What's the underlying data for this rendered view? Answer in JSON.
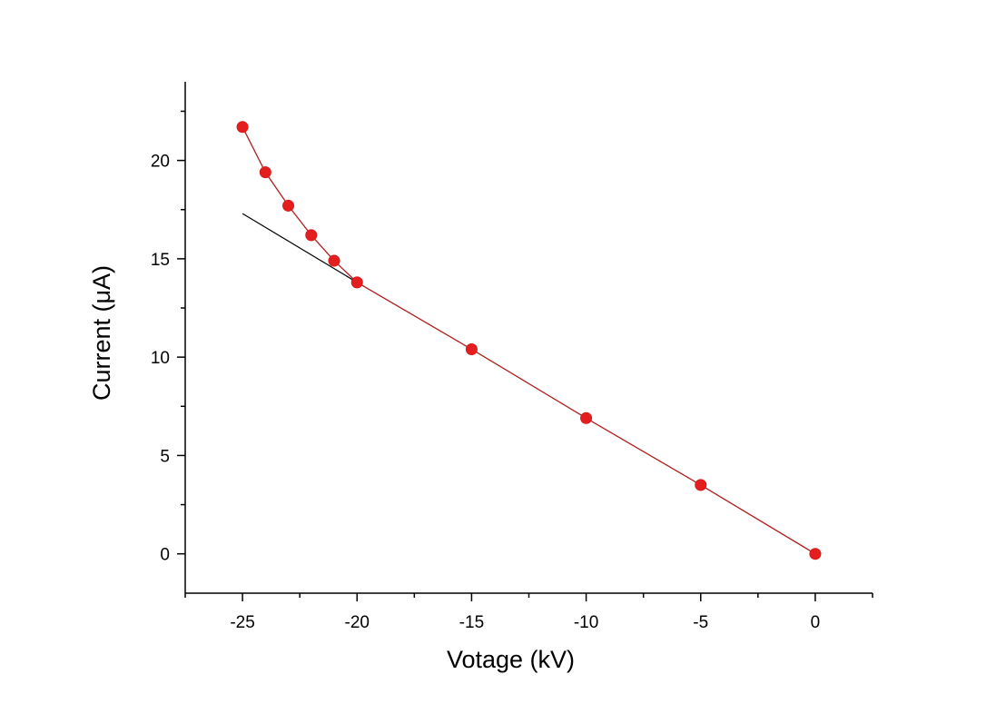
{
  "chart_data": {
    "type": "line",
    "title": "",
    "xlabel": "Votage (kV)",
    "ylabel": "Current (μA)",
    "xlim": [
      -27.5,
      2.5
    ],
    "ylim": [
      -2,
      24
    ],
    "xticks": [
      -25,
      -20,
      -15,
      -10,
      -5,
      0
    ],
    "xtick_labels": [
      "-25",
      "-20",
      "-15",
      "-10",
      "-5",
      "0"
    ],
    "yticks": [
      0,
      5,
      10,
      15,
      20
    ],
    "ytick_labels": [
      "0",
      "5",
      "10",
      "15",
      "20"
    ],
    "grid": false,
    "series": [
      {
        "style": "line+markers",
        "color": "#e41e1e",
        "line_color": "#b01e1e",
        "x": [
          -25,
          -24,
          -23,
          -22,
          -21,
          -20,
          -15,
          -10,
          -5,
          0
        ],
        "y": [
          21.7,
          19.4,
          17.7,
          16.2,
          14.9,
          13.8,
          10.4,
          6.9,
          3.5,
          0
        ]
      },
      {
        "style": "line",
        "color": "#000000",
        "x": [
          -25,
          -20
        ],
        "y": [
          17.3,
          13.8
        ]
      }
    ]
  }
}
